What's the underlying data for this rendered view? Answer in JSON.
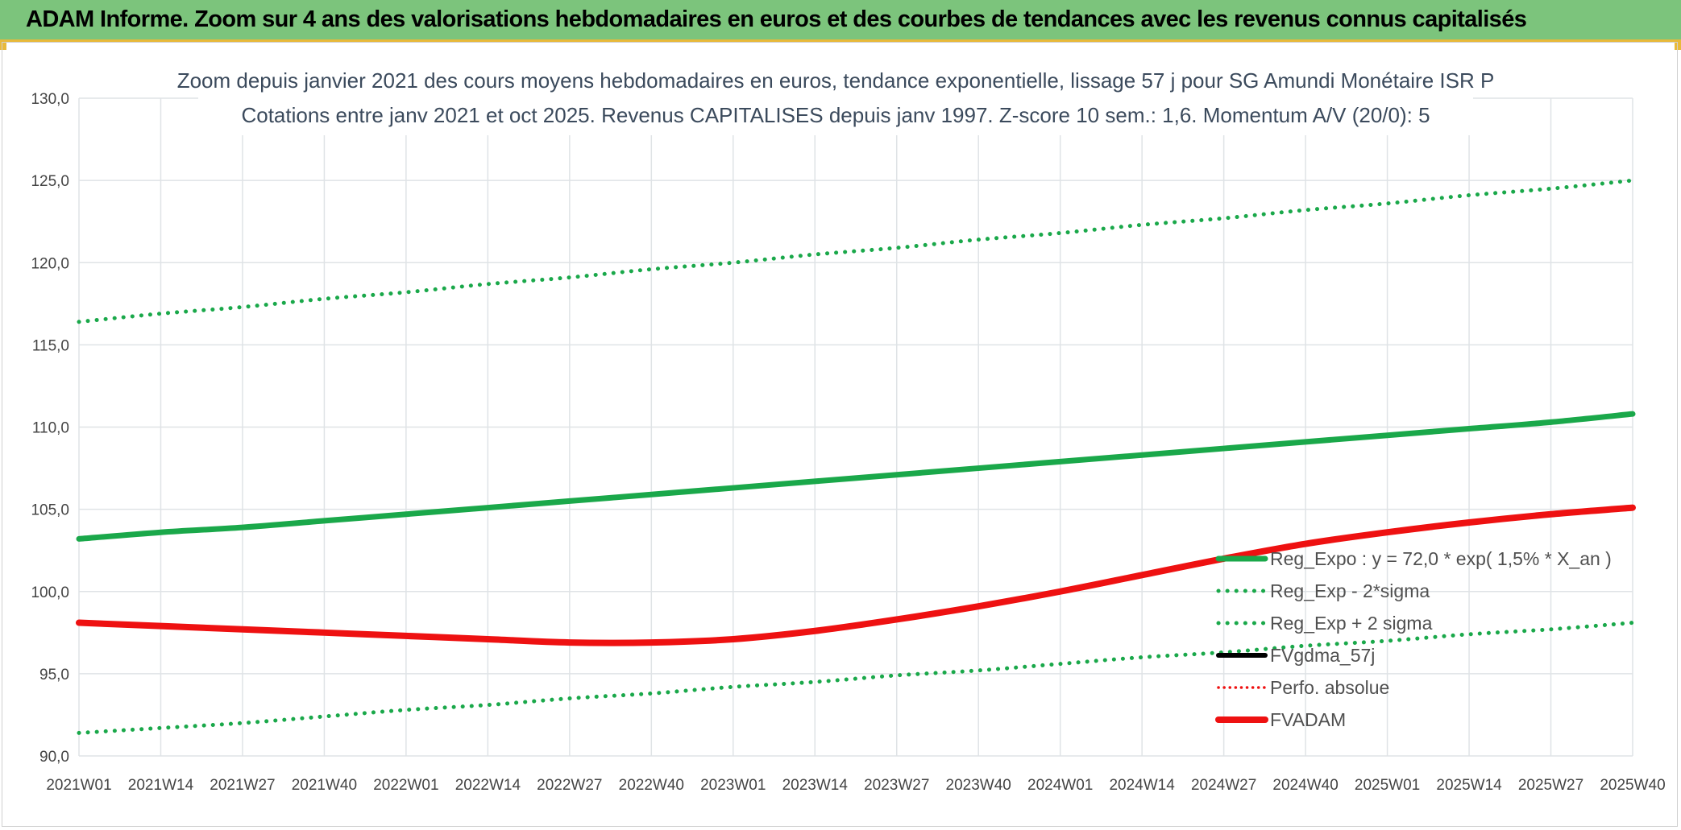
{
  "header": {
    "title": "ADAM Informe. Zoom sur 4 ans des valorisations hebdomadaires en euros et des courbes de tendances avec les revenus connus capitalisés"
  },
  "colors": {
    "header_bg": "#7cc47c",
    "accent": "#e8b93a",
    "trend_green": "#1aa84a",
    "fvadam_red": "#ee1111",
    "fvgdma_black": "#000000"
  },
  "chart_data": {
    "type": "line",
    "title": "Zoom depuis janvier 2021 des cours moyens hebdomadaires en euros, tendance exponentielle, lissage 57 j pour SG Amundi Monétaire ISR P",
    "subtitle": "Cotations entre janv 2021 et oct 2025. Revenus CAPITALISES depuis janv 1997. Z-score 10 sem.: 1,6. Momentum A/V (20/0): 5",
    "xlabel": "",
    "ylabel": "",
    "ylim": [
      90,
      130
    ],
    "y_ticks": [
      "90,0",
      "95,0",
      "100,0",
      "105,0",
      "110,0",
      "115,0",
      "120,0",
      "125,0",
      "130,0"
    ],
    "x_ticks": [
      "2021W01",
      "2021W14",
      "2021W27",
      "2021W40",
      "2022W01",
      "2022W14",
      "2022W27",
      "2022W40",
      "2023W01",
      "2023W14",
      "2023W27",
      "2023W40",
      "2024W01",
      "2024W14",
      "2024W27",
      "2024W40",
      "2025W01",
      "2025W14",
      "2025W27",
      "2025W40"
    ],
    "grid": true,
    "legend_position": "bottom-right",
    "series": [
      {
        "name": "Reg_Expo : y = 72,0 * exp( 1,5% *  X_an )",
        "style": "solid-green",
        "values": [
          103.2,
          103.6,
          103.9,
          104.3,
          104.7,
          105.1,
          105.5,
          105.9,
          106.3,
          106.7,
          107.1,
          107.5,
          107.9,
          108.3,
          108.7,
          109.1,
          109.5,
          109.9,
          110.3,
          110.8
        ]
      },
      {
        "name": "Reg_Exp - 2*sigma",
        "style": "dotted-green",
        "values": [
          91.4,
          91.7,
          92.0,
          92.4,
          92.8,
          93.1,
          93.5,
          93.8,
          94.2,
          94.5,
          94.9,
          95.2,
          95.6,
          96.0,
          96.3,
          96.7,
          97.0,
          97.4,
          97.7,
          98.1
        ]
      },
      {
        "name": "Reg_Exp + 2 sigma",
        "style": "dotted-green",
        "values": [
          116.4,
          116.9,
          117.3,
          117.8,
          118.2,
          118.7,
          119.1,
          119.6,
          120.0,
          120.5,
          120.9,
          121.4,
          121.8,
          122.3,
          122.7,
          123.2,
          123.6,
          124.1,
          124.5,
          125.0
        ]
      },
      {
        "name": "FVgdma_57j",
        "style": "solid-black",
        "values": [
          98.1,
          97.9,
          97.7,
          97.5,
          97.3,
          97.1,
          96.9,
          96.9,
          97.1,
          97.6,
          98.3,
          99.1,
          100.0,
          101.0,
          102.0,
          102.9,
          103.6,
          104.2,
          104.7,
          105.1
        ]
      },
      {
        "name": "Perfo. absolue",
        "style": "dotted-red",
        "values": []
      },
      {
        "name": "FVADAM",
        "style": "solid-red",
        "values": [
          98.1,
          97.9,
          97.7,
          97.5,
          97.3,
          97.1,
          96.9,
          96.9,
          97.1,
          97.6,
          98.3,
          99.1,
          100.0,
          101.0,
          102.0,
          102.9,
          103.6,
          104.2,
          104.7,
          105.1
        ]
      }
    ]
  }
}
